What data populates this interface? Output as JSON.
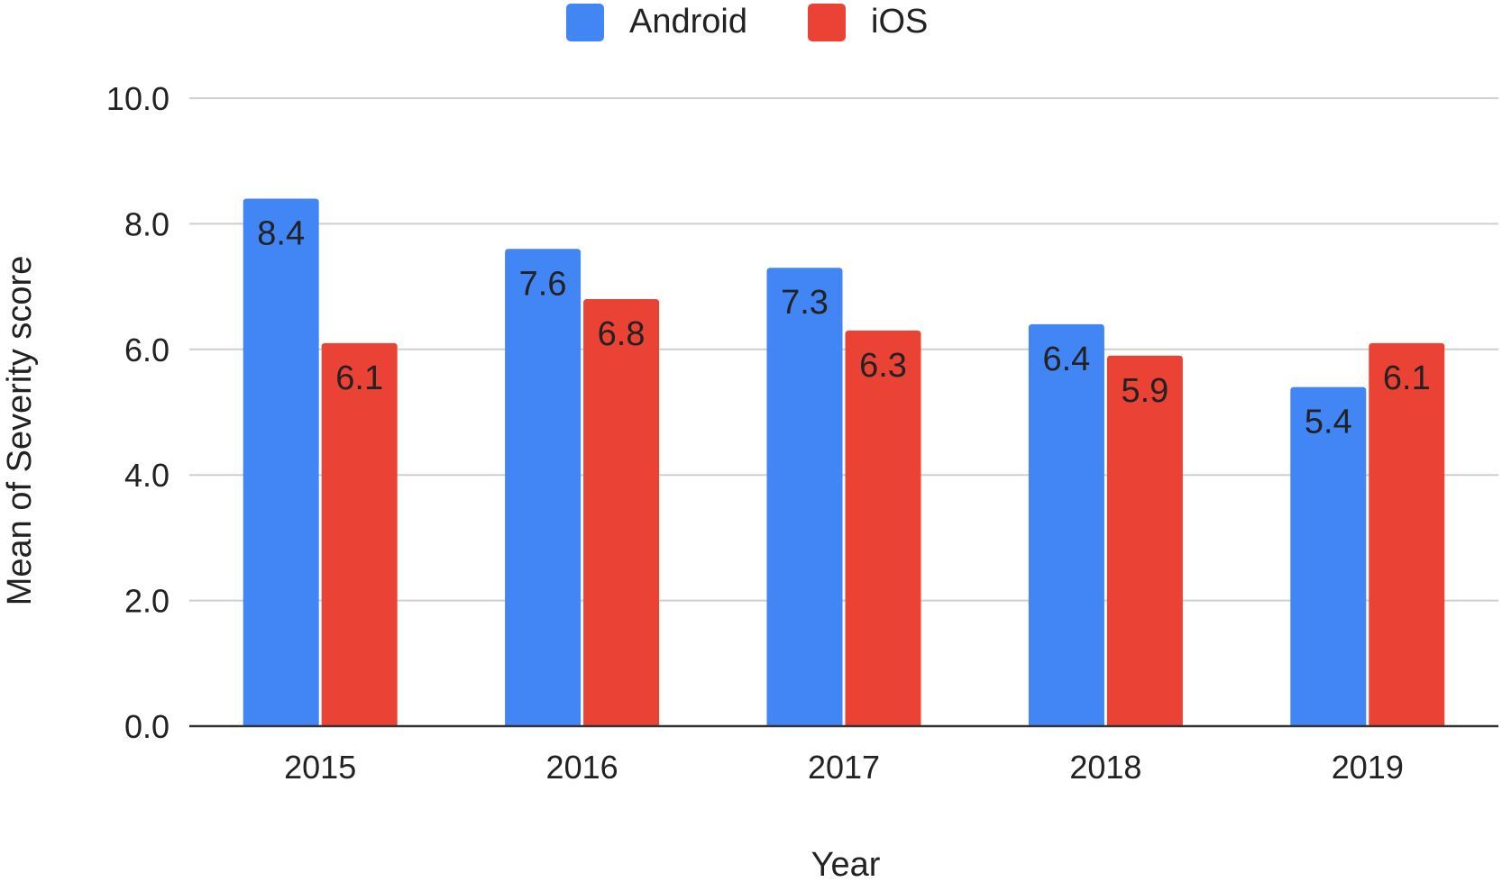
{
  "chart_data": {
    "type": "bar",
    "categories": [
      "2015",
      "2016",
      "2017",
      "2018",
      "2019"
    ],
    "series": [
      {
        "name": "Android",
        "color": "#4285f4",
        "values": [
          8.4,
          7.6,
          7.3,
          6.4,
          5.4
        ],
        "labels": [
          "8.4",
          "7.6",
          "7.3",
          "6.4",
          "5.4"
        ]
      },
      {
        "name": "iOS",
        "color": "#ea4335",
        "values": [
          6.1,
          6.8,
          6.3,
          5.9,
          6.1
        ],
        "labels": [
          "6.1",
          "6.8",
          "6.3",
          "5.9",
          "6.1"
        ]
      }
    ],
    "title": "",
    "xlabel": "Year",
    "ylabel": "Mean of Severity score",
    "ylim": [
      0,
      10
    ],
    "yticks": [
      0,
      2,
      4,
      6,
      8,
      10
    ],
    "ytick_labels": [
      "0.0",
      "2.0",
      "4.0",
      "6.0",
      "8.0",
      "10.0"
    ],
    "grid": true,
    "legend_position": "top-center"
  }
}
